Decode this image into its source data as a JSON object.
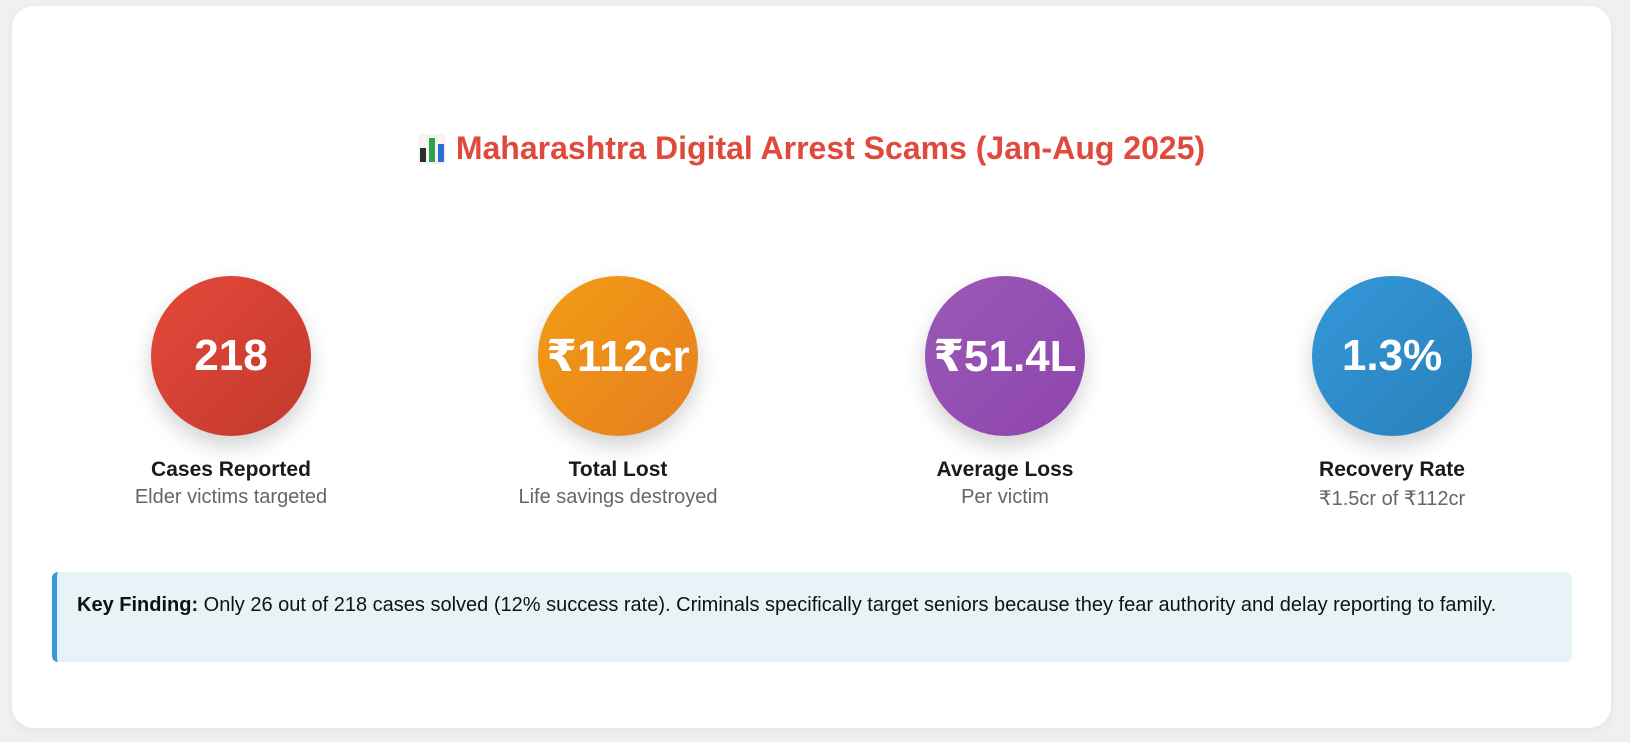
{
  "header": {
    "title": "Maharashtra Digital Arrest Scams (Jan-Aug 2025)",
    "icon": "bar-chart-icon"
  },
  "stats": [
    {
      "value": "218",
      "label": "Cases Reported",
      "sub": "Elder victims targeted",
      "color": "#e74c3c"
    },
    {
      "value": "₹112cr",
      "label": "Total Lost",
      "sub": "Life savings destroyed",
      "color": "#f39c12"
    },
    {
      "value": "₹51.4L",
      "label": "Average Loss",
      "sub": "Per victim",
      "color": "#9b59b6"
    },
    {
      "value": "1.3%",
      "label": "Recovery Rate",
      "sub": "₹1.5cr of ₹112cr",
      "color": "#3498db"
    }
  ],
  "finding": {
    "label": "Key Finding:",
    "text": " Only 26 out of 218 cases solved (12% success rate). Criminals specifically target seniors because they fear authority and delay reporting to family.",
    "accent": "#3498db"
  },
  "colors": {
    "title": "#e04a3c",
    "background": "#ffffff"
  }
}
